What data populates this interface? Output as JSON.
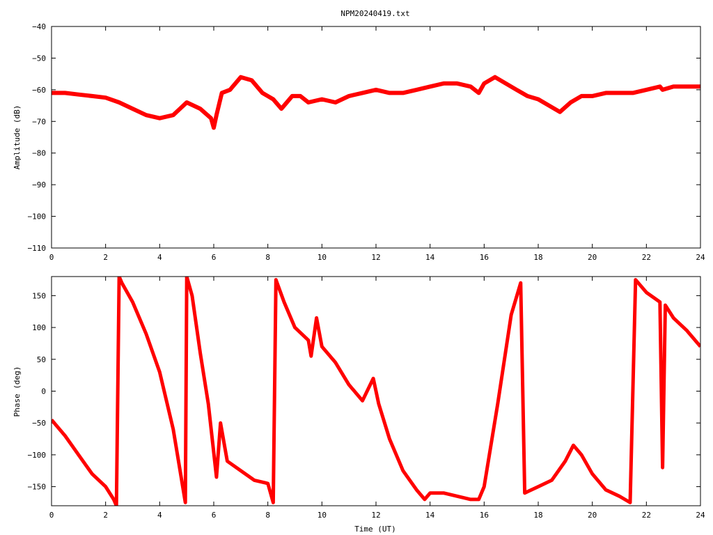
{
  "title": "NPM20240419.txt",
  "colors": {
    "series": "#ff0000",
    "axes": "#000000",
    "background": "#ffffff"
  },
  "chart_data": [
    {
      "type": "line",
      "title": "NPM20240419.txt",
      "xlabel": "",
      "ylabel": "Amplitude (dB)",
      "xlim": [
        0,
        24
      ],
      "ylim": [
        -110,
        -40
      ],
      "xticks": [
        "0",
        "2",
        "4",
        "6",
        "8",
        "10",
        "12",
        "14",
        "16",
        "18",
        "20",
        "22",
        "24"
      ],
      "yticks": [
        "−40",
        "−50",
        "−60",
        "−70",
        "−80",
        "−90",
        "−100",
        "−110"
      ],
      "grid": false,
      "legend": "none",
      "series": [
        {
          "x": [
            0,
            0.5,
            1,
            1.5,
            2,
            2.5,
            3,
            3.5,
            4,
            4.5,
            5,
            5.5,
            5.9,
            6.0,
            6.1,
            6.3,
            6.6,
            7.0,
            7.4,
            7.8,
            8.2,
            8.5,
            8.6,
            8.9,
            9.2,
            9.5,
            10,
            10.5,
            11,
            11.5,
            12,
            12.5,
            13,
            13.5,
            14,
            14.5,
            15,
            15.5,
            15.8,
            16,
            16.4,
            16.8,
            17.2,
            17.6,
            18,
            18.4,
            18.8,
            19.2,
            19.6,
            20,
            20.5,
            21,
            21.5,
            22,
            22.5,
            22.6,
            23,
            23.5,
            24
          ],
          "y": [
            -61,
            -61,
            -61.5,
            -62,
            -62.5,
            -64,
            -66,
            -68,
            -69,
            -68,
            -64,
            -66,
            -69,
            -72,
            -68,
            -61,
            -60,
            -56,
            -57,
            -61,
            -63,
            -66,
            -65,
            -62,
            -62,
            -64,
            -63,
            -64,
            -62,
            -61,
            -60,
            -61,
            -61,
            -60,
            -59,
            -58,
            -58,
            -59,
            -61,
            -58,
            -56,
            -58,
            -60,
            -62,
            -63,
            -65,
            -67,
            -64,
            -62,
            -62,
            -61,
            -61,
            -61,
            -60,
            -59,
            -60,
            -59,
            -59,
            -59
          ]
        }
      ]
    },
    {
      "type": "line",
      "title": "",
      "xlabel": "Time (UT)",
      "ylabel": "Phase (deg)",
      "xlim": [
        0,
        24
      ],
      "ylim": [
        -180,
        180
      ],
      "xticks": [
        "0",
        "2",
        "4",
        "6",
        "8",
        "10",
        "12",
        "14",
        "16",
        "18",
        "20",
        "22",
        "24"
      ],
      "yticks": [
        "150",
        "100",
        "50",
        "0",
        "−50",
        "−100",
        "−150"
      ],
      "grid": false,
      "legend": "none",
      "series": [
        {
          "x": [
            0,
            0.5,
            1,
            1.5,
            2,
            2.3,
            2.4,
            2.5,
            2.6,
            3,
            3.5,
            4,
            4.5,
            4.95,
            5.0,
            5.2,
            5.5,
            5.8,
            6.1,
            6.25,
            6.5,
            7,
            7.5,
            8,
            8.2,
            8.3,
            8.6,
            9,
            9.5,
            9.6,
            9.8,
            10,
            10.5,
            11,
            11.5,
            11.9,
            12.1,
            12.5,
            13,
            13.5,
            13.8,
            14,
            14.5,
            15,
            15.5,
            15.8,
            16,
            16.5,
            17,
            17.35,
            17.5,
            18,
            18.5,
            19,
            19.3,
            19.6,
            20,
            20.5,
            21,
            21.4,
            21.6,
            22,
            22.5,
            22.6,
            22.7,
            23,
            23.5,
            24
          ],
          "y": [
            -45,
            -70,
            -100,
            -130,
            -150,
            -170,
            -180,
            180,
            170,
            140,
            90,
            30,
            -60,
            -175,
            180,
            150,
            60,
            -20,
            -135,
            -50,
            -110,
            -125,
            -140,
            -145,
            -175,
            175,
            140,
            100,
            80,
            55,
            115,
            70,
            45,
            10,
            -15,
            20,
            -20,
            -75,
            -125,
            -155,
            -170,
            -160,
            -160,
            -165,
            -170,
            -170,
            -150,
            -20,
            120,
            170,
            -160,
            -150,
            -140,
            -110,
            -85,
            -100,
            -130,
            -155,
            -165,
            -175,
            175,
            155,
            140,
            -120,
            135,
            115,
            95,
            70
          ]
        }
      ]
    }
  ]
}
